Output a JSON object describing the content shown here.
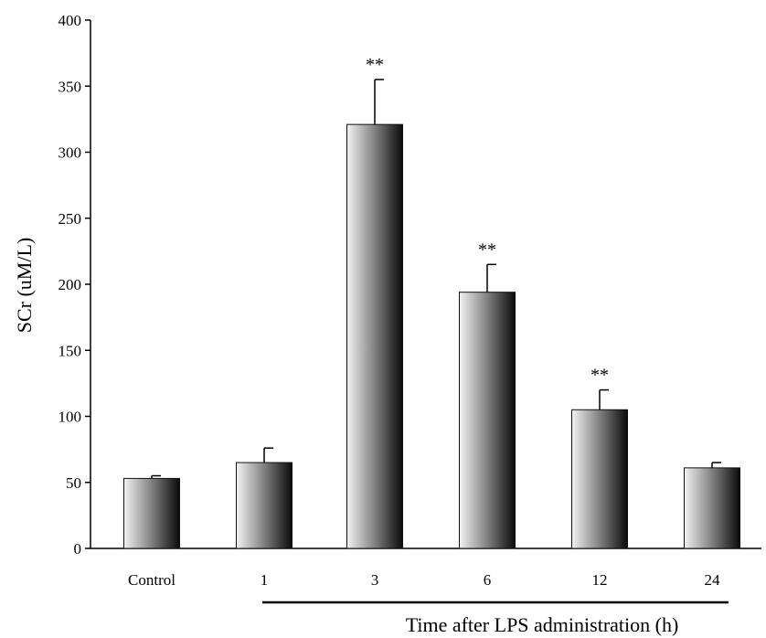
{
  "chart_data": {
    "type": "bar",
    "categories": [
      "Control",
      "1",
      "3",
      "6",
      "12",
      "24"
    ],
    "values": [
      53,
      65,
      321,
      194,
      105,
      61
    ],
    "errors": [
      2,
      11,
      34,
      21,
      15,
      4
    ],
    "annotations": [
      "",
      "",
      "**",
      "**",
      "**",
      ""
    ],
    "title": "",
    "xlabel": "Time after LPS administration (h)",
    "ylabel": "SCr  (uM/L)",
    "ylim": [
      0,
      400
    ],
    "yticks": [
      0,
      50,
      100,
      150,
      200,
      250,
      300,
      350,
      400
    ],
    "grid": false,
    "bar_gradient": [
      "#f2f2f2",
      "#8c8c8c",
      "#0a0a0a"
    ]
  }
}
